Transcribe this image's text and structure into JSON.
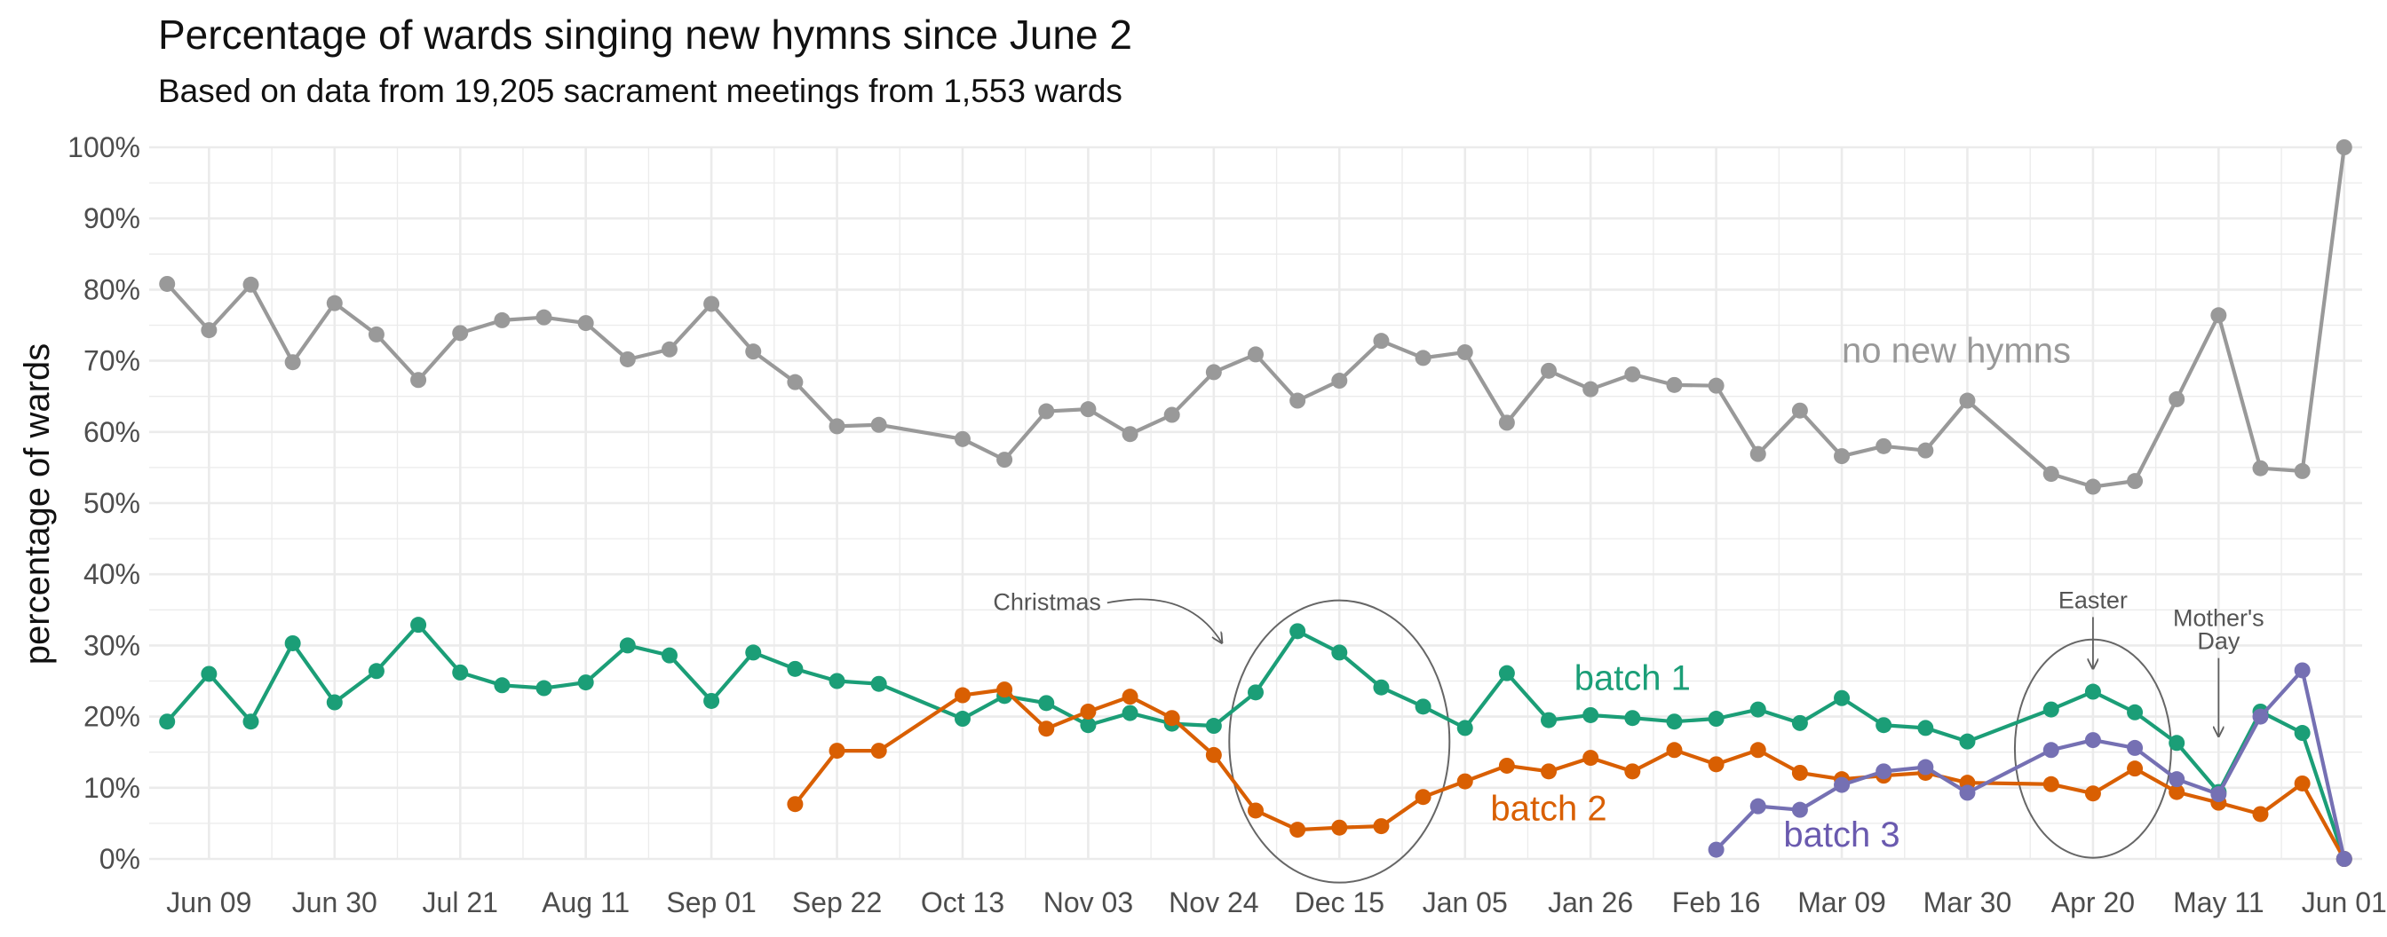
{
  "chart_data": {
    "type": "line",
    "title": "Percentage of wards singing new hymns since June 2",
    "subtitle": "Based on data from 19,205 sacrament meetings from 1,553 wards",
    "xlabel": "",
    "ylabel": "percentage of wards",
    "x_start": "2024-06-02",
    "week_days": 7,
    "xlim": [
      "2024-05-30",
      "2025-06-04"
    ],
    "ylim": [
      0,
      100
    ],
    "x_tick_labels": [
      "Jun 09",
      "Jun 30",
      "Jul 21",
      "Aug 11",
      "Sep 01",
      "Sep 22",
      "Oct 13",
      "Nov 03",
      "Nov 24",
      "Dec 15",
      "Jan 05",
      "Jan 26",
      "Feb 16",
      "Mar 09",
      "Mar 30",
      "Apr 20",
      "May 11",
      "Jun 01"
    ],
    "x_tick_dates": [
      "2024-06-09",
      "2024-06-30",
      "2024-07-21",
      "2024-08-11",
      "2024-09-01",
      "2024-09-22",
      "2024-10-13",
      "2024-11-03",
      "2024-11-24",
      "2024-12-15",
      "2025-01-05",
      "2025-01-26",
      "2025-02-16",
      "2025-03-09",
      "2025-03-30",
      "2025-04-20",
      "2025-05-11",
      "2025-06-01"
    ],
    "y_tick_labels": [
      "0%",
      "10%",
      "20%",
      "30%",
      "40%",
      "50%",
      "60%",
      "70%",
      "80%",
      "90%",
      "100%"
    ],
    "y_tick_values": [
      0,
      10,
      20,
      30,
      40,
      50,
      60,
      70,
      80,
      90,
      100
    ],
    "grid": true,
    "legend": "none (series labeled directly on plot)",
    "series": [
      {
        "name": "no new hymns",
        "color": "#999999",
        "label_color": "#999999",
        "start_week": 0,
        "values": [
          80.8,
          74.3,
          80.7,
          69.8,
          78.1,
          73.7,
          67.3,
          73.9,
          75.7,
          76.1,
          75.3,
          70.2,
          71.6,
          78.0,
          71.3,
          67.0,
          60.8,
          61.0,
          null,
          59.0,
          56.1,
          62.9,
          63.2,
          59.7,
          62.4,
          68.4,
          70.9,
          64.4,
          67.2,
          72.8,
          70.4,
          71.2,
          61.3,
          68.6,
          66.0,
          68.1,
          66.6,
          66.5,
          56.9,
          63.0,
          56.6,
          58.0,
          57.4,
          64.4,
          null,
          54.1,
          52.3,
          53.1,
          64.6,
          76.4,
          54.9,
          54.5,
          100.0
        ]
      },
      {
        "name": "batch 1",
        "color": "#1b9e77",
        "label_color": "#1b9e77",
        "start_week": 0,
        "values": [
          19.3,
          26.0,
          19.3,
          30.3,
          22.0,
          26.4,
          32.9,
          26.2,
          24.4,
          24.0,
          24.8,
          30.0,
          28.6,
          22.2,
          29.0,
          26.7,
          25.0,
          24.6,
          null,
          19.7,
          22.9,
          21.9,
          18.8,
          20.5,
          19.0,
          18.7,
          23.4,
          32.0,
          29.0,
          24.1,
          21.4,
          18.4,
          26.1,
          19.5,
          20.2,
          19.8,
          19.3,
          19.7,
          21.0,
          19.1,
          22.6,
          18.8,
          18.4,
          16.5,
          null,
          21.0,
          23.5,
          20.6,
          16.3,
          9.4,
          20.7,
          17.7,
          0.0
        ]
      },
      {
        "name": "batch 2",
        "color": "#d95f02",
        "label_color": "#d95f02",
        "start_week": 15,
        "values": [
          7.7,
          15.2,
          15.2,
          null,
          23.0,
          23.8,
          18.3,
          20.7,
          22.8,
          19.8,
          14.6,
          6.8,
          4.1,
          4.4,
          4.6,
          8.7,
          10.9,
          13.1,
          12.3,
          14.2,
          12.3,
          15.3,
          13.3,
          15.3,
          12.1,
          11.2,
          11.7,
          12.1,
          10.7,
          null,
          10.5,
          9.2,
          12.7,
          9.4,
          7.9,
          6.3,
          10.6,
          0.0
        ]
      },
      {
        "name": "batch 3",
        "color": "#7570b3",
        "label_color": "#6a5aaf",
        "start_week": 37,
        "values": [
          1.3,
          7.4,
          6.9,
          10.4,
          12.3,
          12.9,
          9.3,
          null,
          15.3,
          16.7,
          15.6,
          11.2,
          9.1,
          20.0,
          26.5,
          0.0
        ]
      }
    ],
    "annotations": [
      {
        "text": "Christmas",
        "type": "label-with-arrow",
        "target_date": "2024-11-24",
        "target_value": 30
      },
      {
        "text": "Easter",
        "type": "label-with-arrow",
        "target_date": "2025-04-20",
        "target_value": 27
      },
      {
        "text": "Mother's Day",
        "type": "label-with-arrow",
        "target_date": "2025-05-11",
        "target_value": 17.5
      },
      {
        "type": "ellipse",
        "center_date": "2024-12-15",
        "center_value": 16.5
      },
      {
        "type": "ellipse",
        "center_date": "2025-04-20",
        "center_value": 15.5
      }
    ]
  }
}
